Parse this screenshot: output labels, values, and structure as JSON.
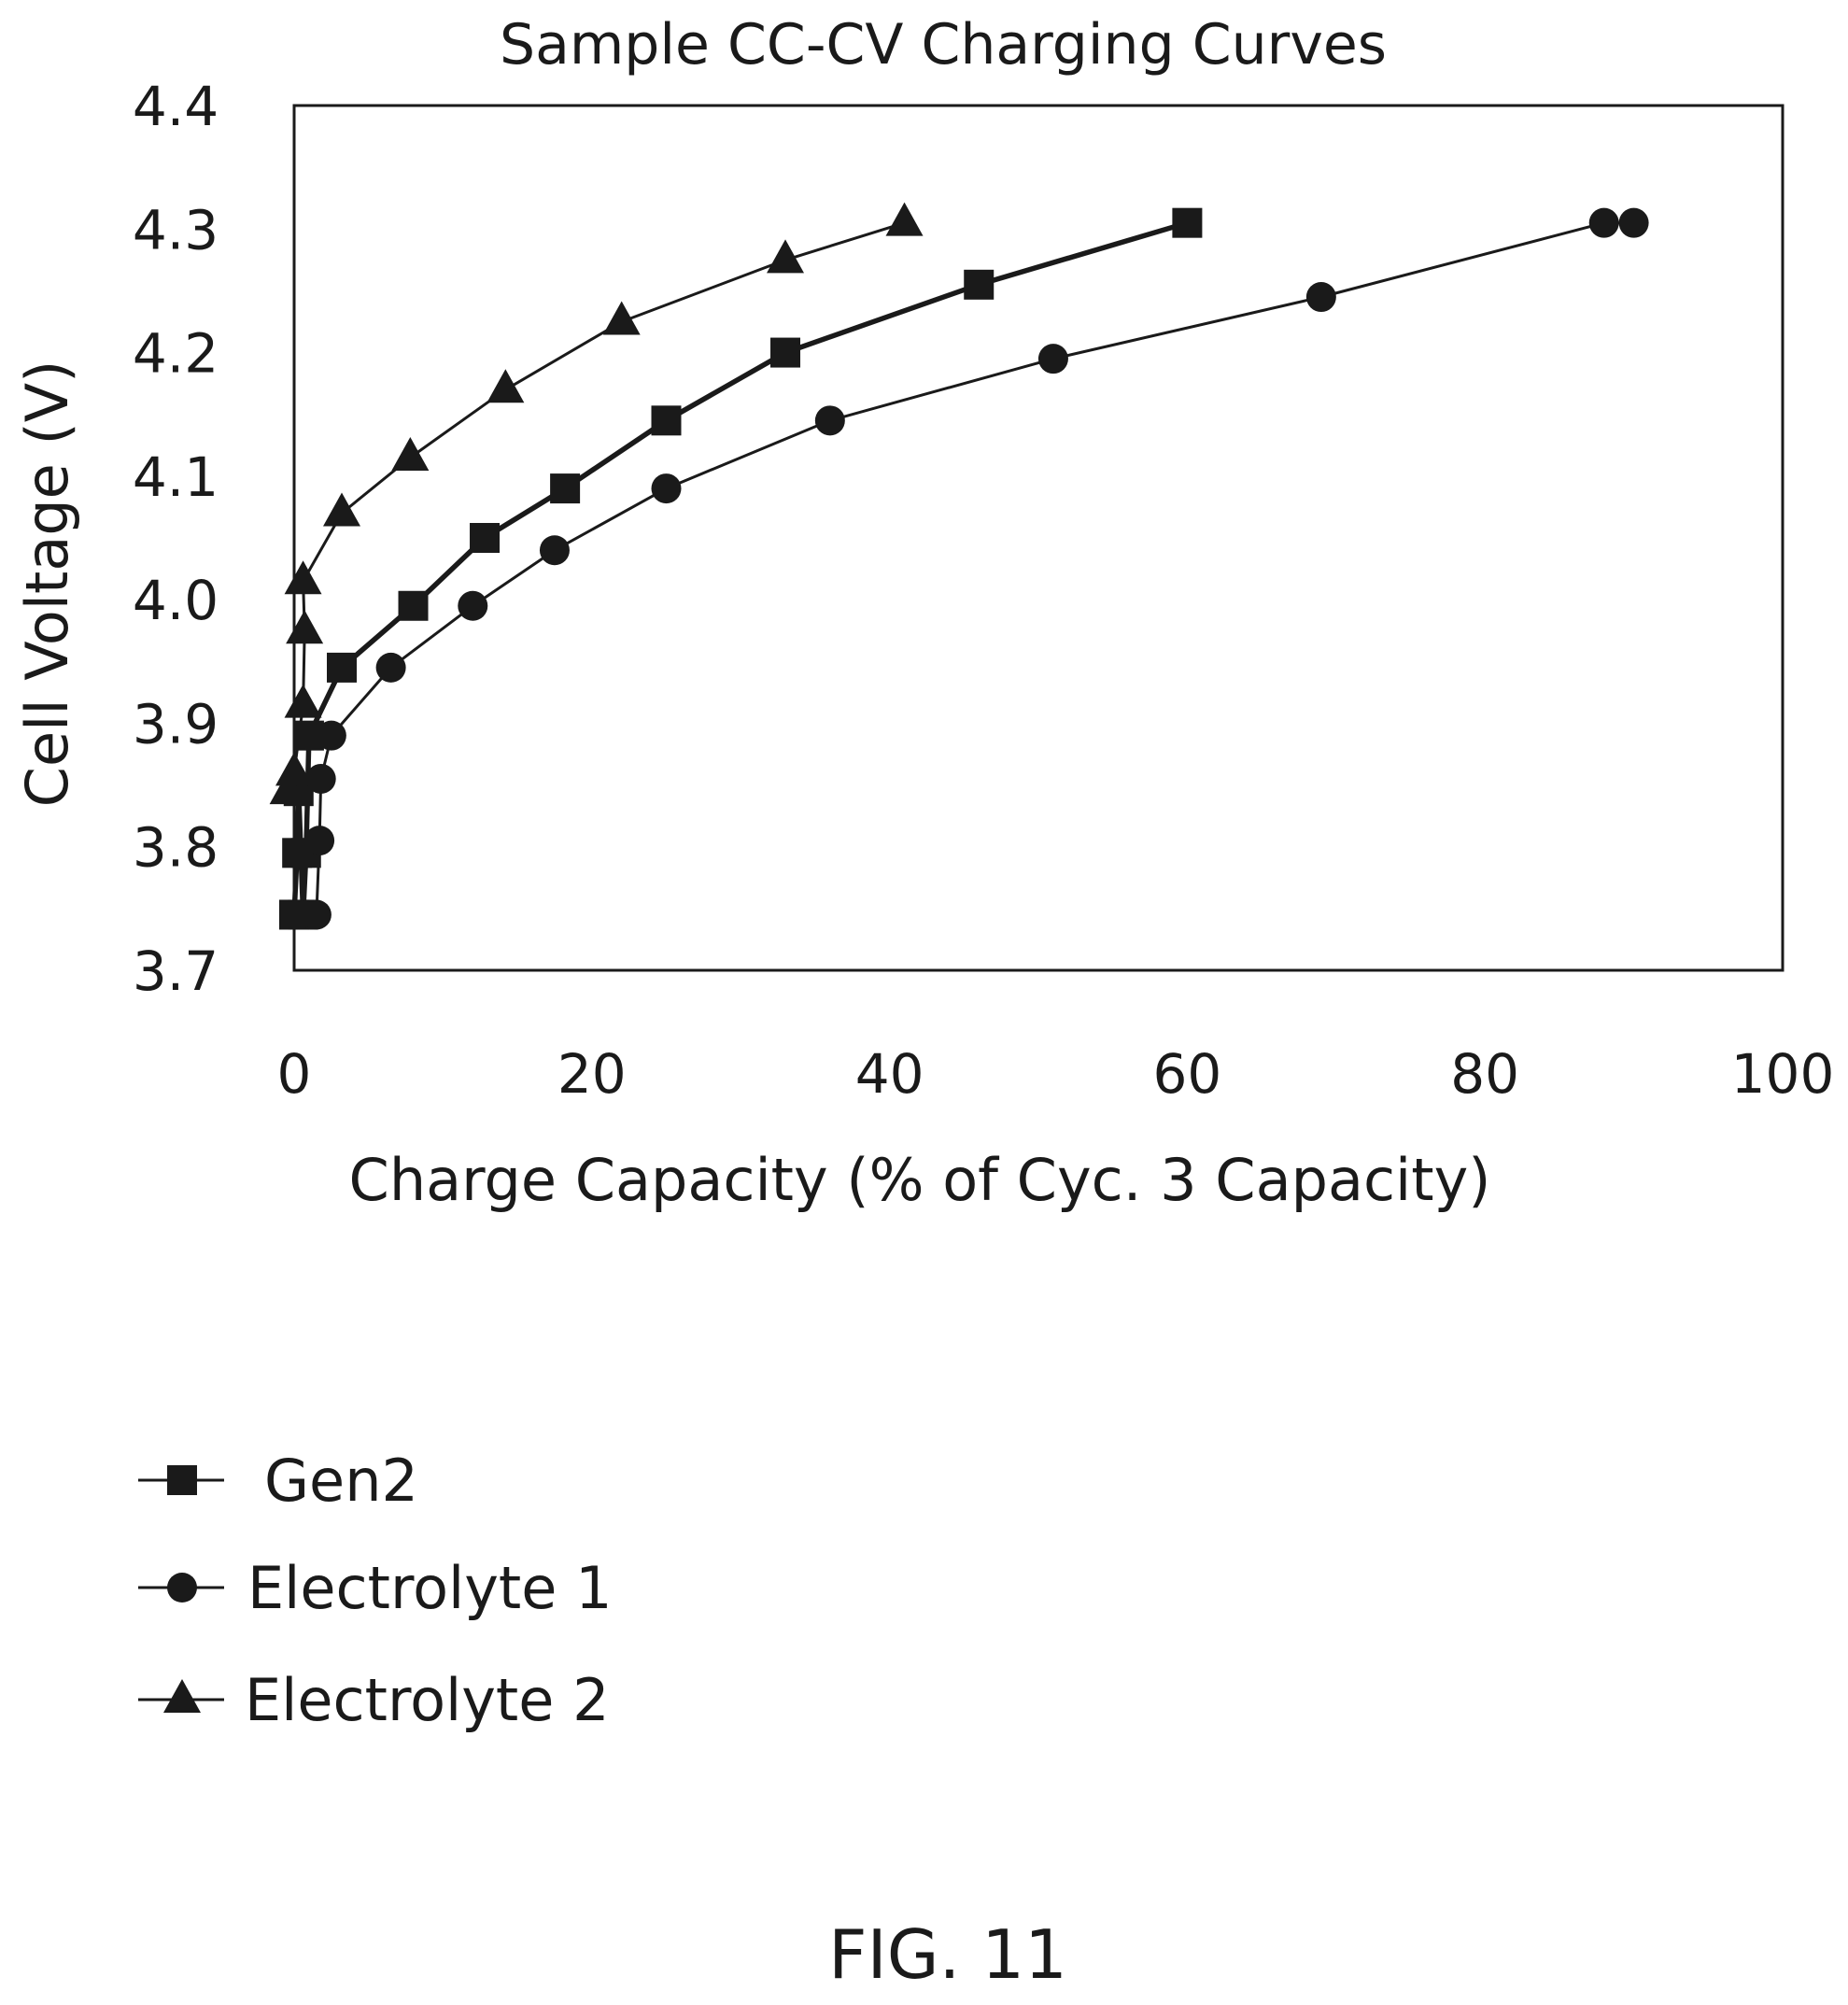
{
  "chart_data": {
    "type": "line",
    "title": "Sample CC-CV Charging Curves",
    "xlabel": "Charge Capacity (% of Cyc. 3 Capacity)",
    "ylabel": "Cell Voltage (V)",
    "xlim": [
      0,
      100
    ],
    "ylim": [
      3.7,
      4.4
    ],
    "x_ticks": [
      "0",
      "20",
      "40",
      "60",
      "80",
      "100"
    ],
    "y_ticks": [
      "3.7",
      "3.8",
      "3.9",
      "4.0",
      "4.1",
      "4.2",
      "4.3",
      "4.4"
    ],
    "grid": false,
    "legend_position": "bottom-left",
    "series": [
      {
        "name": "Gen2",
        "marker": "square",
        "line_width": "thick",
        "points": [
          [
            0.0,
            3.745
          ],
          [
            0.2,
            3.795
          ],
          [
            0.3,
            3.845
          ],
          [
            0.6,
            3.745
          ],
          [
            0.8,
            3.795
          ],
          [
            1.0,
            3.89
          ],
          [
            3.2,
            3.945
          ],
          [
            8.0,
            3.995
          ],
          [
            12.8,
            4.05
          ],
          [
            18.2,
            4.09
          ],
          [
            25.0,
            4.145
          ],
          [
            33.0,
            4.2
          ],
          [
            46.0,
            4.255
          ],
          [
            60.0,
            4.305
          ]
        ]
      },
      {
        "name": "Electrolyte 1",
        "marker": "circle",
        "line_width": "thin",
        "points": [
          [
            0.3,
            3.745
          ],
          [
            1.5,
            3.745
          ],
          [
            1.7,
            3.805
          ],
          [
            1.8,
            3.855
          ],
          [
            2.5,
            3.89
          ],
          [
            6.5,
            3.945
          ],
          [
            12.0,
            3.995
          ],
          [
            17.5,
            4.04
          ],
          [
            25.0,
            4.09
          ],
          [
            36.0,
            4.145
          ],
          [
            51.0,
            4.195
          ],
          [
            69.0,
            4.245
          ],
          [
            88.0,
            4.305
          ],
          [
            90.0,
            4.305
          ]
        ]
      },
      {
        "name": "Electrolyte 2",
        "marker": "triangle",
        "line_width": "thin",
        "points": [
          [
            -0.4,
            3.845
          ],
          [
            0.0,
            3.86
          ],
          [
            0.6,
            3.915
          ],
          [
            0.7,
            3.975
          ],
          [
            0.6,
            4.015
          ],
          [
            3.2,
            4.07
          ],
          [
            7.8,
            4.115
          ],
          [
            14.2,
            4.17
          ],
          [
            22.0,
            4.225
          ],
          [
            33.0,
            4.275
          ],
          [
            41.0,
            4.305
          ]
        ]
      }
    ]
  },
  "figure_label": "FIG. 11"
}
